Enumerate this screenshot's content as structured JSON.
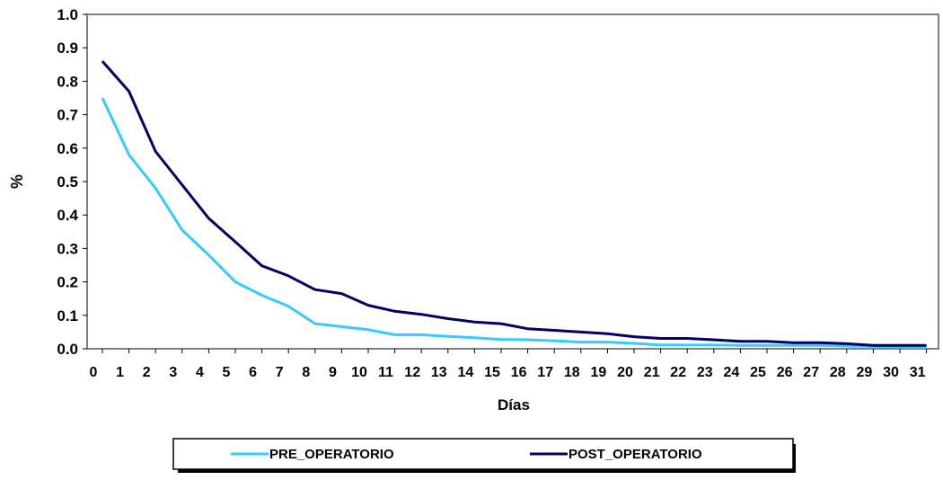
{
  "chart_data": {
    "type": "line",
    "title": "",
    "xlabel": "Días",
    "ylabel": "%",
    "ylim": [
      0,
      1.0
    ],
    "y_ticks": [
      "0.0",
      "0.1",
      "0.2",
      "0.3",
      "0.4",
      "0.5",
      "0.6",
      "0.7",
      "0.8",
      "0.9",
      "1.0"
    ],
    "categories": [
      "0",
      "1",
      "2",
      "3",
      "4",
      "5",
      "6",
      "7",
      "8",
      "9",
      "10",
      "11",
      "12",
      "13",
      "14",
      "15",
      "16",
      "17",
      "18",
      "19",
      "20",
      "21",
      "22",
      "23",
      "24",
      "25",
      "26",
      "27",
      "28",
      "29",
      "30",
      "31"
    ],
    "grid": false,
    "legend_position": "bottom",
    "series": [
      {
        "name": "PRE_OPERATORIO",
        "color": "#33ccff",
        "values": [
          0.75,
          0.58,
          0.48,
          0.355,
          0.28,
          0.2,
          0.16,
          0.127,
          0.075,
          0.066,
          0.057,
          0.042,
          0.042,
          0.037,
          0.033,
          0.028,
          0.027,
          0.024,
          0.02,
          0.02,
          0.016,
          0.011,
          0.011,
          0.011,
          0.01,
          0.01,
          0.01,
          0.01,
          0.008,
          0.007,
          0.006,
          0.005
        ]
      },
      {
        "name": "POST_OPERATORIO",
        "color": "#000066",
        "values": [
          0.86,
          0.77,
          0.59,
          0.49,
          0.39,
          0.32,
          0.248,
          0.218,
          0.177,
          0.165,
          0.13,
          0.112,
          0.103,
          0.09,
          0.08,
          0.075,
          0.06,
          0.055,
          0.05,
          0.045,
          0.036,
          0.031,
          0.031,
          0.027,
          0.022,
          0.022,
          0.018,
          0.018,
          0.015,
          0.01,
          0.01,
          0.01
        ]
      }
    ]
  }
}
